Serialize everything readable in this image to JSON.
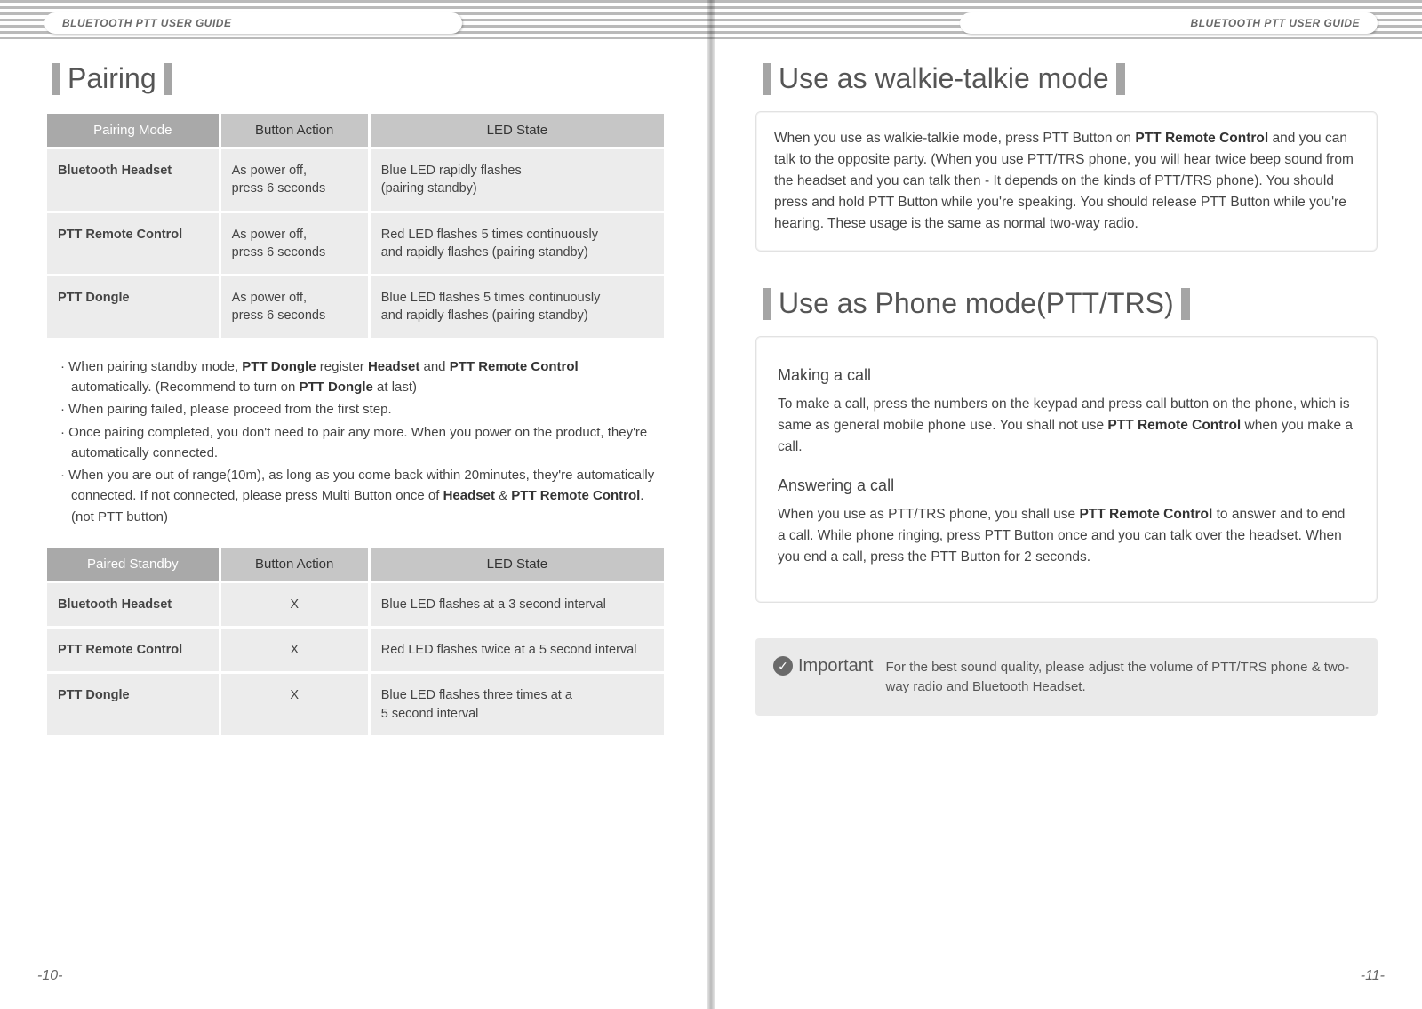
{
  "header": {
    "left": "BLUETOOTH PTT  USER GUIDE",
    "right": "BLUETOOTH PTT USER GUIDE"
  },
  "left_page": {
    "title": "Pairing",
    "table1": {
      "columns": [
        "Pairing Mode",
        "Button Action",
        "LED State"
      ],
      "rows": [
        [
          "Bluetooth Headset",
          "As power off,\npress 6 seconds",
          "Blue LED rapidly flashes\n(pairing standby)"
        ],
        [
          "PTT Remote Control",
          "As power off,\npress 6 seconds",
          "Red LED flashes 5 times continuously\nand rapidly flashes (pairing standby)"
        ],
        [
          "PTT Dongle",
          "As power off,\npress 6 seconds",
          "Blue LED flashes 5 times continuously\nand rapidly flashes (pairing standby)"
        ]
      ]
    },
    "bullets": [
      "When pairing standby mode, <b>PTT Dongle</b> register <b>Headset</b> and <b>PTT Remote Control</b> automatically. (Recommend to turn on <b>PTT Dongle</b> at last)",
      "When pairing failed, please proceed from the first step.",
      "Once pairing completed, you don't need to pair any more. When you power on the product, they're automatically connected.",
      "When you are out of range(10m), as long as you come back within 20minutes, they're automatically connected. If not connected, please press Multi Button once of <b>Headset</b> & <b>PTT Remote Control</b>. (not PTT button)"
    ],
    "table2": {
      "columns": [
        "Paired Standby",
        "Button Action",
        "LED State"
      ],
      "rows": [
        [
          "Bluetooth Headset",
          "X",
          "Blue LED flashes at a 3 second interval"
        ],
        [
          "PTT Remote Control",
          "X",
          "Red LED flashes twice at a 5 second interval"
        ],
        [
          "PTT Dongle",
          "X",
          "Blue LED flashes three times at a\n5 second interval"
        ]
      ]
    },
    "page_num": "-10-"
  },
  "right_page": {
    "title1": "Use as walkie-talkie mode",
    "box1": "When you use as walkie-talkie mode, press PTT Button on <b>PTT Remote Control</b>  and you can talk to the opposite party. (When you use PTT/TRS phone, you will hear twice beep sound from the headset and you can talk then - It depends on the kinds of PTT/TRS phone). You should press and hold PTT Button while you're speaking. You should release PTT Button while you're hearing. These usage is the same as normal two-way radio.",
    "title2": "Use as Phone mode(PTT/TRS)",
    "sub1_head": "Making a call",
    "sub1_body": "To make a call, press the numbers on the keypad and press call button on the phone, which is same as general mobile phone use. You shall not use <b>PTT Remote Control</b> when you make a call.",
    "sub2_head": "Answering a call",
    "sub2_body": "When you use as PTT/TRS phone, you shall use <b>PTT Remote Control</b> to answer and to end a call. While phone ringing, press PTT Button once and you can talk over the headset. When you end a call, press the PTT Button for 2 seconds.",
    "important_label": "Important",
    "important_text": "For the best sound quality, please adjust the volume of PTT/TRS phone & two-way radio and Bluetooth Headset.",
    "page_num": "-11-"
  },
  "colors": {
    "header_dark": "#a9a9a9",
    "header_light": "#c6c6c6",
    "cell_bg": "#ececec",
    "accent_bar": "#a5a5a5",
    "text": "#444444",
    "important_bg": "#eaeaea"
  }
}
